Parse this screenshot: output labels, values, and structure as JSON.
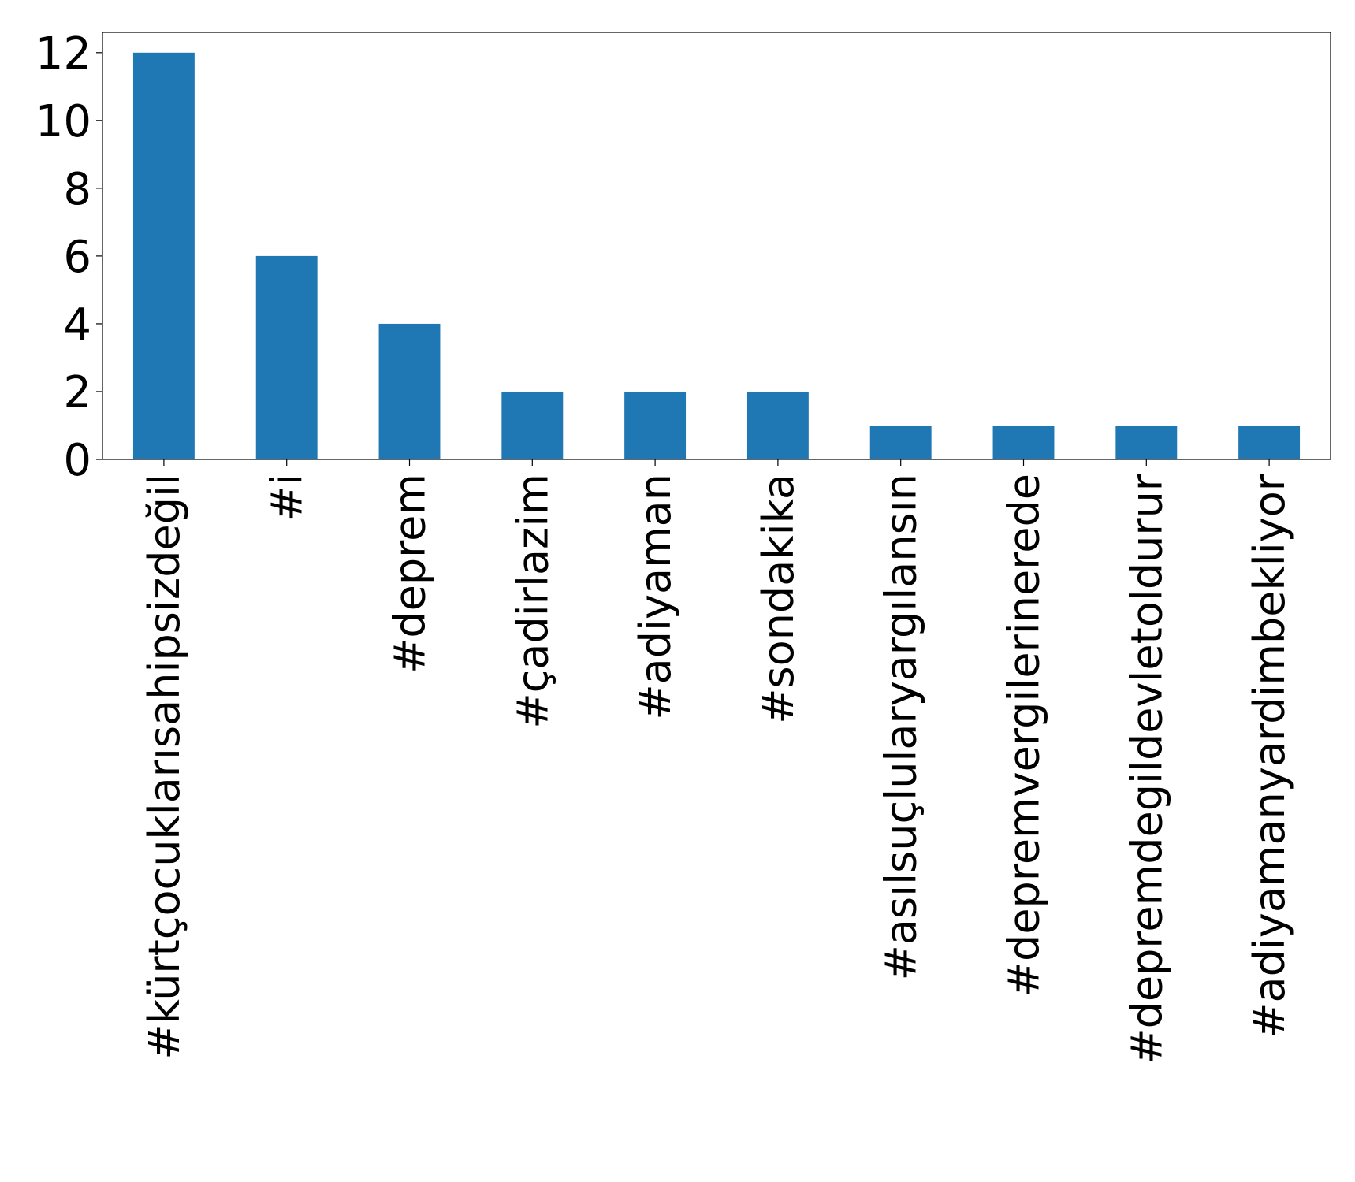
{
  "chart_data": {
    "type": "bar",
    "title": "",
    "xlabel": "",
    "ylabel": "",
    "categories": [
      "#kürtçocuklarısahipsizdeğil",
      "#i",
      "#deprem",
      "#çadirlazim",
      "#adiyaman",
      "#sondakika",
      "#asılsuçlularyargılansın",
      "#depremvergilerinerede",
      "#depremdegildevletoldurur",
      "#adiyamanyardimbekliyor"
    ],
    "values": [
      12,
      6,
      4,
      2,
      2,
      2,
      1,
      1,
      1,
      1
    ],
    "ylim": [
      0,
      12.6
    ],
    "yticks": [
      0,
      2,
      4,
      6,
      8,
      10,
      12
    ],
    "grid": false,
    "legend": "none",
    "colors": {
      "bar": "#1f77b4",
      "axis": "#000000",
      "background": "#ffffff"
    }
  }
}
